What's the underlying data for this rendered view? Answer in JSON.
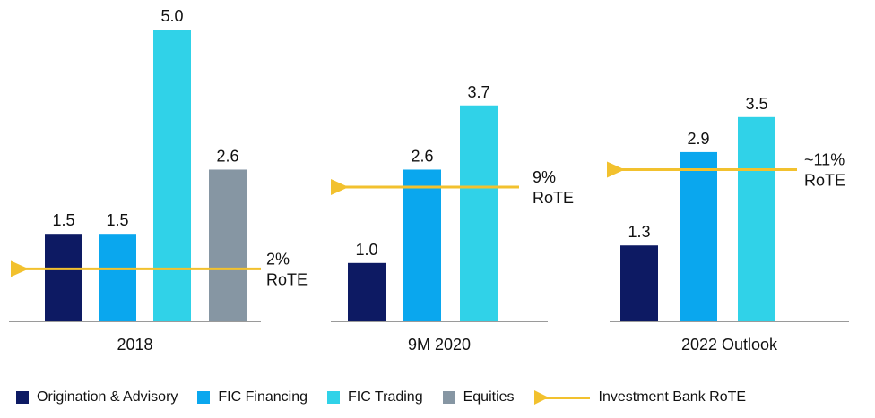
{
  "colors": {
    "origination": "#0d1a63",
    "fic_financing": "#0aa7ee",
    "fic_trading": "#30d2e8",
    "equities": "#8696a3",
    "rote": "#f2c12e"
  },
  "chart_data": [
    {
      "type": "bar",
      "title": "2018",
      "categories": [
        "Origination & Advisory",
        "FIC Financing",
        "FIC Trading",
        "Equities"
      ],
      "values": [
        1.5,
        1.5,
        5.0,
        2.6
      ],
      "value_labels": [
        "1.5",
        "1.5",
        "5.0",
        "2.6"
      ],
      "rote": {
        "value_label": "2%",
        "label_suffix": "RoTE",
        "level": 0.9
      }
    },
    {
      "type": "bar",
      "title": "9M 2020",
      "categories": [
        "Origination & Advisory",
        "FIC Financing",
        "FIC Trading"
      ],
      "values": [
        1.0,
        2.6,
        3.7
      ],
      "value_labels": [
        "1.0",
        "2.6",
        "3.7"
      ],
      "rote": {
        "value_label": "9%",
        "label_suffix": "RoTE",
        "level": 2.3
      }
    },
    {
      "type": "bar",
      "title": "2022 Outlook",
      "categories": [
        "Origination & Advisory",
        "FIC Financing",
        "FIC Trading"
      ],
      "values": [
        1.3,
        2.9,
        3.5
      ],
      "value_labels": [
        "1.3",
        "2.9",
        "3.5"
      ],
      "rote": {
        "value_label": "~11%",
        "label_suffix": "RoTE",
        "level": 2.6
      }
    }
  ],
  "legend": {
    "items": [
      {
        "label": "Origination & Advisory",
        "color_key": "origination"
      },
      {
        "label": "FIC Financing",
        "color_key": "fic_financing"
      },
      {
        "label": "FIC Trading",
        "color_key": "fic_trading"
      },
      {
        "label": "Equities",
        "color_key": "equities"
      }
    ],
    "line_label": "Investment Bank RoTE"
  }
}
